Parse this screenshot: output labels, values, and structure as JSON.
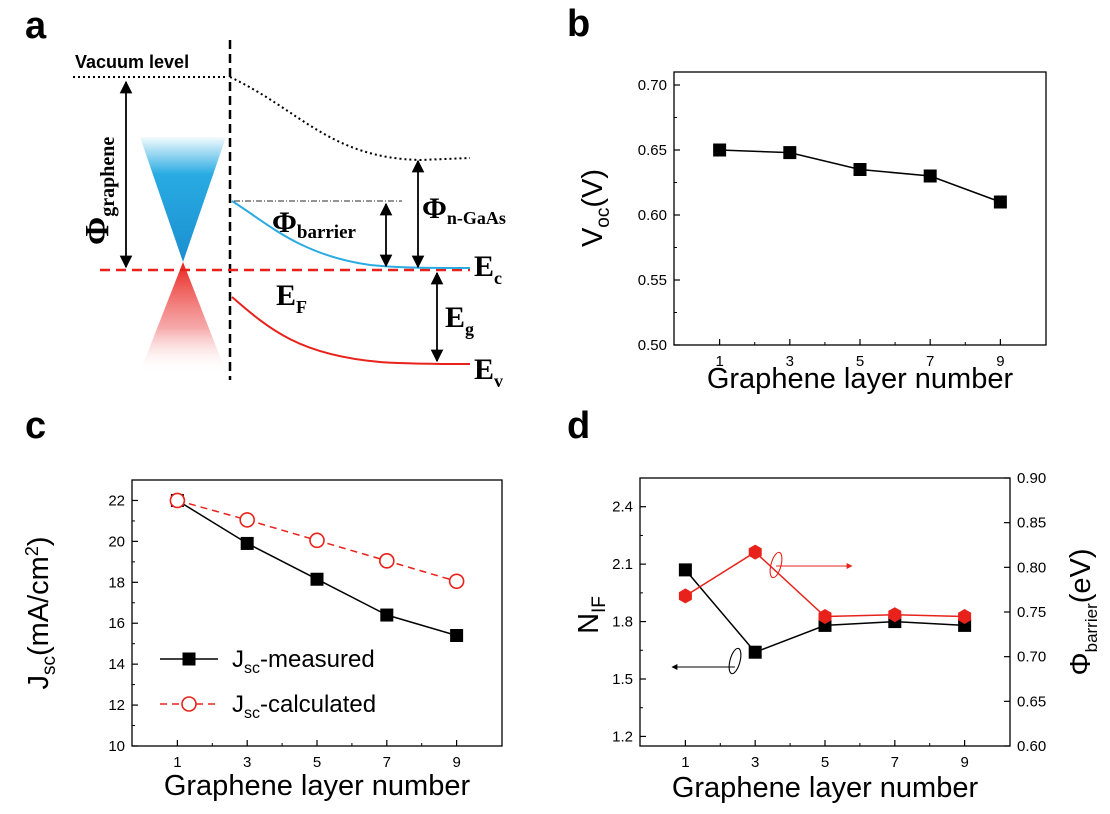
{
  "panels": {
    "a": "a",
    "b": "b",
    "c": "c",
    "d": "d"
  },
  "diagram": {
    "vacuum_level": "Vacuum level",
    "phi": "Φ",
    "phi_graphene_sub": "graphene",
    "phi_barrier_sub": "barrier",
    "phi_ngaas_sub": "n-GaAs",
    "E": "E",
    "ec_sub": "c",
    "ef_sub": "F",
    "eg_sub": "g",
    "ev_sub": "v",
    "colors": {
      "conduction": "#29abe2",
      "valence": "#e8221b",
      "fermi": "#e8221b"
    }
  },
  "chart_data": [
    {
      "id": "b",
      "type": "line",
      "x": [
        1,
        3,
        5,
        7,
        9
      ],
      "series": [
        {
          "values": [
            0.65,
            0.648,
            0.635,
            0.63,
            0.61
          ],
          "marker": "filled-square",
          "line": "solid",
          "color": "#000000"
        }
      ],
      "xlabel": "Graphene layer number",
      "ylabel": {
        "main": "V",
        "sub": "oc",
        "unit": "(V)"
      },
      "xlim": [
        -0.3,
        10.3
      ],
      "ylim": [
        0.5,
        0.71
      ],
      "xticks": [
        "1",
        "3",
        "5",
        "7",
        "9"
      ],
      "yticks": [
        "0.50",
        "0.55",
        "0.60",
        "0.65",
        "0.70"
      ],
      "grid": false
    },
    {
      "id": "c",
      "type": "line",
      "x": [
        1,
        3,
        5,
        7,
        9
      ],
      "series": [
        {
          "name_main": "J",
          "name_sub": "sc",
          "name_rest": "-measured",
          "values": [
            22.0,
            19.9,
            18.15,
            16.4,
            15.4
          ],
          "marker": "filled-square",
          "line": "solid",
          "color": "#000000"
        },
        {
          "name_main": "J",
          "name_sub": "sc",
          "name_rest": "-calculated",
          "values": [
            22.0,
            21.05,
            20.05,
            19.05,
            18.05
          ],
          "marker": "open-circle",
          "line": "dashed",
          "color": "#e8221b"
        }
      ],
      "xlabel": "Graphene layer number",
      "ylabel": {
        "main": "J",
        "sub": "sc",
        "unit": "(mA/cm",
        "sup": "2",
        "close": ")"
      },
      "xlim": [
        -0.3,
        10.3
      ],
      "ylim": [
        10,
        23
      ],
      "xticks": [
        "1",
        "3",
        "5",
        "7",
        "9"
      ],
      "yticks": [
        "10",
        "12",
        "14",
        "16",
        "18",
        "20",
        "22"
      ],
      "legend": "lower-left",
      "grid": false
    },
    {
      "id": "d",
      "type": "line",
      "x": [
        1,
        3,
        5,
        7,
        9
      ],
      "series": [
        {
          "axis": "left",
          "values": [
            2.07,
            1.64,
            1.78,
            1.8,
            1.78
          ],
          "marker": "filled-square",
          "line": "solid",
          "color": "#000000"
        },
        {
          "axis": "right",
          "values": [
            0.768,
            0.817,
            0.745,
            0.747,
            0.745
          ],
          "marker": "filled-hexagon",
          "line": "solid",
          "color": "#e8221b"
        }
      ],
      "xlabel": "Graphene layer number",
      "ylabel_left": {
        "main": "N",
        "sub": "IF"
      },
      "ylabel_right": {
        "main": "Φ",
        "sub": "barrier",
        "unit": "(eV)"
      },
      "xlim": [
        -0.3,
        10.3
      ],
      "ylim_left": [
        1.15,
        2.55
      ],
      "ylim_right": [
        0.6,
        0.9
      ],
      "xticks": [
        "1",
        "3",
        "5",
        "7",
        "9"
      ],
      "yticks_left": [
        "1.2",
        "1.5",
        "1.8",
        "2.1",
        "2.4"
      ],
      "yticks_right": [
        "0.60",
        "0.65",
        "0.70",
        "0.75",
        "0.80",
        "0.85",
        "0.90"
      ],
      "grid": false
    }
  ]
}
